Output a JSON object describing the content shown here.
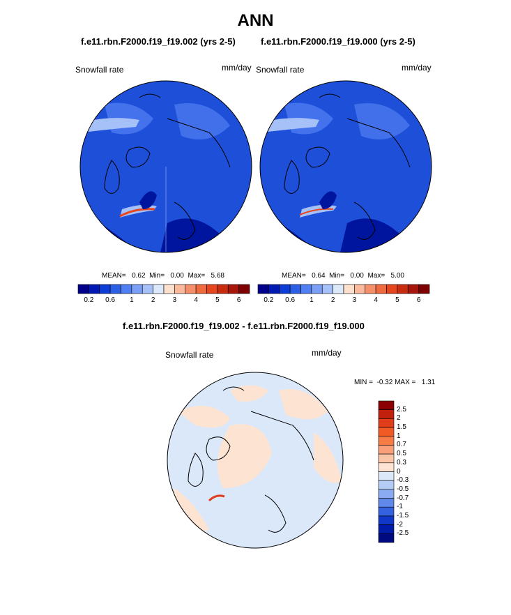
{
  "title": "ANN",
  "panels": [
    {
      "id": "p1",
      "case": "f.e11.rbn.F2000.f19_f19.002 (yrs 2-5)",
      "variable": "Snowfall rate",
      "units": "mm/day",
      "stats": {
        "mean_label": "MEAN=",
        "mean": "0.62",
        "min_label": "Min=",
        "min": "0.00",
        "max_label": "Max=",
        "max": "5.68"
      }
    },
    {
      "id": "p2",
      "case": "f.e11.rbn.F2000.f19_f19.000 (yrs 2-5)",
      "variable": "Snowfall rate",
      "units": "mm/day",
      "stats": {
        "mean_label": "MEAN=",
        "mean": "0.64",
        "min_label": "Min=",
        "min": "0.00",
        "max_label": "Max=",
        "max": "5.00"
      }
    }
  ],
  "diff": {
    "title": "f.e11.rbn.F2000.f19_f19.002 - f.e11.rbn.F2000.f19_f19.000",
    "variable": "Snowfall rate",
    "units": "mm/day",
    "stats": {
      "min_label": "MIN =",
      "min": "-0.32",
      "max_label": "MAX =",
      "max": "1.31"
    }
  },
  "chart_data": [
    {
      "type": "heatmap",
      "projection": "north polar stereographic",
      "colorbar": {
        "orientation": "horizontal",
        "tick_labels": [
          "0.2",
          "0.6",
          "1",
          "2",
          "3",
          "4",
          "5",
          "6"
        ],
        "colors": [
          "#00008b",
          "#0019b3",
          "#0d3dd6",
          "#2b5fe6",
          "#4f7ff0",
          "#7a9ff4",
          "#a6c0f8",
          "#dbe9fb",
          "#fde1cf",
          "#f9b99a",
          "#f58f69",
          "#ef6a3e",
          "#e6451e",
          "#c92b0f",
          "#a7160b",
          "#7f0000"
        ]
      },
      "field_colors": {
        "background": "#1e4fd9",
        "light": "#4a78ee",
        "dark": "#00159e",
        "max": "#e6451e"
      }
    },
    {
      "type": "heatmap",
      "projection": "north polar stereographic",
      "colorbar": {
        "orientation": "horizontal",
        "tick_labels": [
          "0.2",
          "0.6",
          "1",
          "2",
          "3",
          "4",
          "5",
          "6"
        ],
        "colors": [
          "#00008b",
          "#0019b3",
          "#0d3dd6",
          "#2b5fe6",
          "#4f7ff0",
          "#7a9ff4",
          "#a6c0f8",
          "#dbe9fb",
          "#fde1cf",
          "#f9b99a",
          "#f58f69",
          "#ef6a3e",
          "#e6451e",
          "#c92b0f",
          "#a7160b",
          "#7f0000"
        ]
      },
      "field_colors": {
        "background": "#1e4fd9",
        "light": "#4a78ee",
        "dark": "#00159e",
        "max": "#e6451e"
      }
    },
    {
      "type": "heatmap",
      "projection": "north polar stereographic",
      "colorbar": {
        "orientation": "vertical",
        "tick_labels": [
          "2.5",
          "2",
          "1.5",
          "1",
          "0.7",
          "0.5",
          "0.3",
          "0",
          "-0.3",
          "-0.5",
          "-0.7",
          "-1",
          "-1.5",
          "-2",
          "-2.5"
        ],
        "colors": [
          "#8b0000",
          "#c1200f",
          "#e03d1a",
          "#f25a25",
          "#f77b47",
          "#f9a07a",
          "#fbc6a8",
          "#fde4d2",
          "#dbe8fa",
          "#b4cbf5",
          "#8aabf0",
          "#5f88ea",
          "#3563e0",
          "#1037c8",
          "#001ba8",
          "#000a80"
        ]
      },
      "field_colors": {
        "background": "#dbe8fa",
        "positive": "#fde4d2",
        "max": "#e03d1a"
      }
    }
  ]
}
